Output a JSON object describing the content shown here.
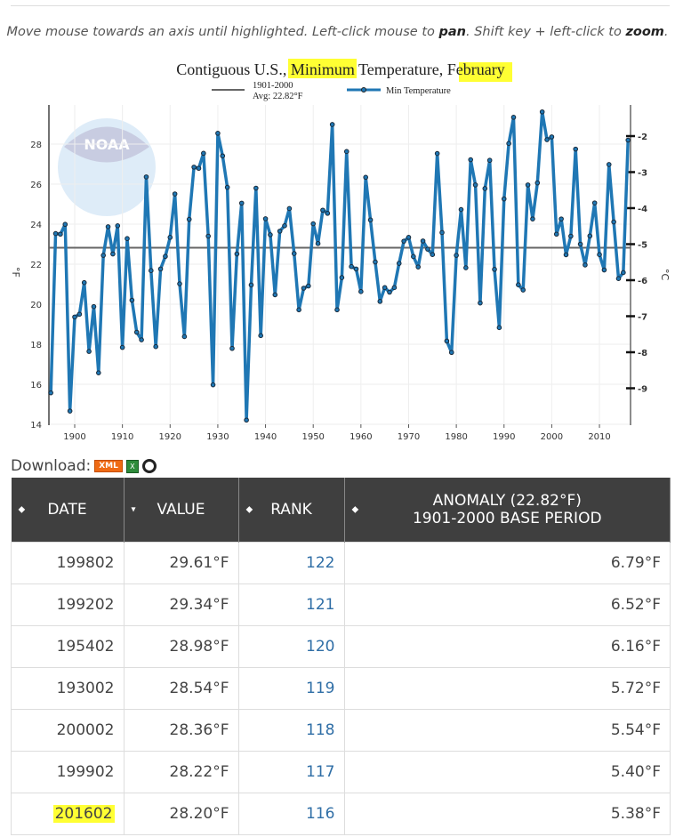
{
  "instruction": {
    "pre": "Move mouse towards an axis until highlighted. Left-click mouse to ",
    "pan": "pan",
    "mid": ". Shift key + left-click to ",
    "zoom": "zoom",
    "post": "."
  },
  "chart_data": {
    "type": "line",
    "title": "Contiguous U.S., Minimum Temperature, February",
    "title_parts": {
      "a": "Contiguous U.S., ",
      "b": "Minimum",
      "c": " Temperature, F",
      "d": "ebruary"
    },
    "legend": {
      "avg_line1": "1901-2000",
      "avg_line2": "Avg: 22.82°F",
      "series": "Min Temperature",
      "placement": "top"
    },
    "ylabel": "°F",
    "ylabel_right": "°C",
    "ylim": [
      14,
      29.8
    ],
    "xlim": [
      1895,
      2016
    ],
    "yticks": [
      14,
      16,
      18,
      20,
      22,
      24,
      26,
      28
    ],
    "yticks_right": [
      -2,
      -3,
      -4,
      -5,
      -6,
      -7,
      -8,
      -9
    ],
    "xticks": [
      1900,
      1910,
      1920,
      1930,
      1940,
      1950,
      1960,
      1970,
      1980,
      1990,
      2000,
      2010
    ],
    "average": 22.82,
    "grid": true,
    "colors": {
      "series": "#1f77b4",
      "average": "#666666"
    },
    "series": [
      {
        "name": "Min Temperature",
        "x_start": 1895,
        "values": [
          15.57,
          23.53,
          23.5,
          23.99,
          14.66,
          19.36,
          19.5,
          21.08,
          17.64,
          19.88,
          16.57,
          22.44,
          23.87,
          22.51,
          23.92,
          17.84,
          23.28,
          20.2,
          18.6,
          18.22,
          26.36,
          21.68,
          17.88,
          21.76,
          22.39,
          23.34,
          25.51,
          21.02,
          18.38,
          24.24,
          26.85,
          26.79,
          27.54,
          23.4,
          15.97,
          28.54,
          27.41,
          25.84,
          17.79,
          22.51,
          25.05,
          14.21,
          20.96,
          25.8,
          18.43,
          24.27,
          23.47,
          20.47,
          23.65,
          23.92,
          24.78,
          22.53,
          19.72,
          20.8,
          20.91,
          24.02,
          23.03,
          24.7,
          24.54,
          28.98,
          19.72,
          21.33,
          27.63,
          21.88,
          21.76,
          20.63,
          26.34,
          24.21,
          22.11,
          20.14,
          20.83,
          20.6,
          20.83,
          22.04,
          23.15,
          23.34,
          22.38,
          21.86,
          23.16,
          22.75,
          22.48,
          27.53,
          23.58,
          18.16,
          17.59,
          22.44,
          24.73,
          21.82,
          27.22,
          25.96,
          20.06,
          25.78,
          27.19,
          21.74,
          18.83,
          25.26,
          28.03,
          29.34,
          20.97,
          20.71,
          25.96,
          24.26,
          26.06,
          29.61,
          28.22,
          28.36,
          23.5,
          24.26,
          22.47,
          23.4,
          27.75,
          23.0,
          21.96,
          23.41,
          25.06,
          22.48,
          21.71,
          26.98,
          24.11,
          21.28,
          21.58,
          28.2
        ]
      }
    ]
  },
  "download": {
    "label": "Download:",
    "xml": "XML",
    "xls": "X"
  },
  "table": {
    "headers": [
      "DATE",
      "VALUE",
      "RANK",
      "ANOMALY (22.82°F)",
      "1901-2000 BASE PERIOD"
    ],
    "rows": [
      {
        "date": "199802",
        "value": "29.61°F",
        "rank": "122",
        "anomaly": "6.79°F"
      },
      {
        "date": "199202",
        "value": "29.34°F",
        "rank": "121",
        "anomaly": "6.52°F"
      },
      {
        "date": "195402",
        "value": "28.98°F",
        "rank": "120",
        "anomaly": "6.16°F"
      },
      {
        "date": "193002",
        "value": "28.54°F",
        "rank": "119",
        "anomaly": "5.72°F"
      },
      {
        "date": "200002",
        "value": "28.36°F",
        "rank": "118",
        "anomaly": "5.54°F"
      },
      {
        "date": "199902",
        "value": "28.22°F",
        "rank": "117",
        "anomaly": "5.40°F"
      },
      {
        "date": "201602",
        "value": "28.20°F",
        "rank": "116",
        "anomaly": "5.38°F"
      }
    ]
  }
}
